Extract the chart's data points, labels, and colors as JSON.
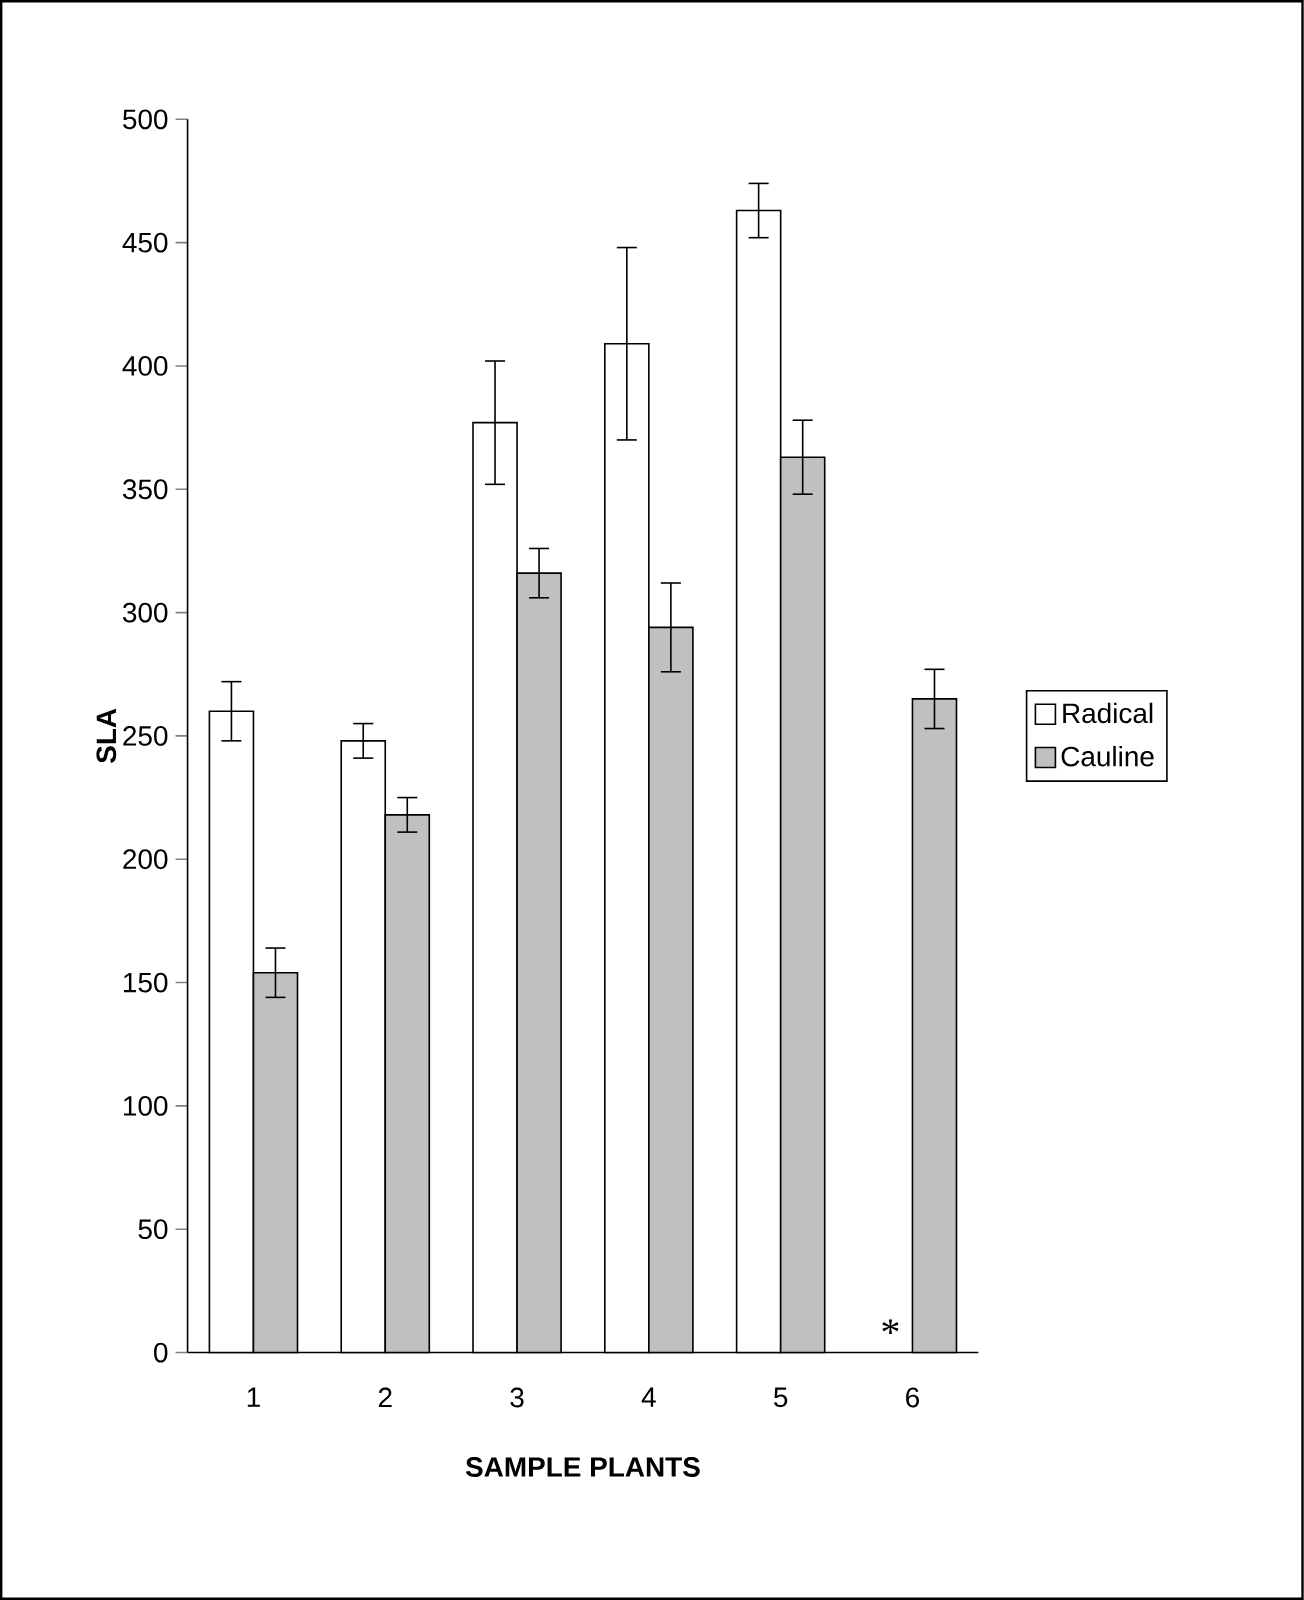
{
  "chart_data": {
    "type": "bar",
    "xlabel": "SAMPLE PLANTS",
    "ylabel": "SLA",
    "categories": [
      "1",
      "2",
      "3",
      "4",
      "5",
      "6"
    ],
    "series": [
      {
        "name": "Radical",
        "color": "#ffffff",
        "values": [
          260,
          248,
          377,
          409,
          463,
          null
        ],
        "errors": [
          12,
          7,
          25,
          39,
          11,
          null
        ]
      },
      {
        "name": "Cauline",
        "color": "#c0c0c0",
        "values": [
          154,
          218,
          316,
          294,
          363,
          265
        ],
        "errors": [
          10,
          7,
          10,
          18,
          15,
          12
        ]
      }
    ],
    "ylim": [
      0,
      500
    ],
    "yticks": [
      0,
      50,
      100,
      150,
      200,
      250,
      300,
      350,
      400,
      450,
      500
    ],
    "annotations": [
      {
        "text": "*",
        "x": "6",
        "y": 0
      }
    ],
    "grid": false,
    "legend": "right"
  }
}
